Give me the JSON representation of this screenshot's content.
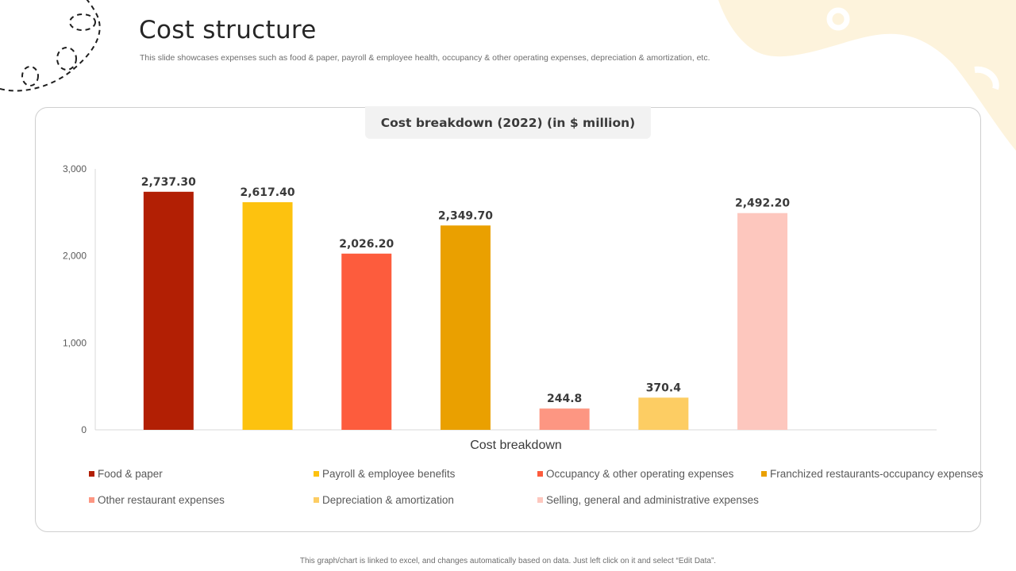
{
  "slide": {
    "title": "Cost structure",
    "subtitle": "This slide showcases expenses such as food & paper, payroll & employee health, occupancy & other operating expenses, depreciation & amortization, etc.",
    "footnote": "This graph/chart is linked to excel, and changes automatically based on data. Just left click on it and select “Edit Data”."
  },
  "colors": {
    "accent_cream": "#fdf3dc",
    "card_border": "#cfcfcf",
    "title_tab_bg": "#f2f2f2"
  },
  "chart_data": {
    "type": "bar",
    "title": "Cost breakdown (2022) (in $ million)",
    "xlabel": "Cost breakdown",
    "ylabel": "",
    "ylim": [
      0,
      3000
    ],
    "yticks": [
      {
        "value": 0,
        "label": "0"
      },
      {
        "value": 1000,
        "label": "1,000"
      },
      {
        "value": 2000,
        "label": "2,000"
      },
      {
        "value": 3000,
        "label": "3,000"
      }
    ],
    "grid": false,
    "legend_position": "bottom",
    "series": [
      {
        "name": "Food & paper",
        "value": 2737.3,
        "label": "2,737.30",
        "color": "#b21f04"
      },
      {
        "name": "Payroll & employee benefits",
        "value": 2617.4,
        "label": "2,617.40",
        "color": "#fdc20f"
      },
      {
        "name": "Occupancy & other operating expenses",
        "value": 2026.2,
        "label": "2,026.20",
        "color": "#fd5c3d"
      },
      {
        "name": "Franchized restaurants-occupancy expenses",
        "value": 2349.7,
        "label": "2,349.70",
        "color": "#eaa000"
      },
      {
        "name": "Other restaurant expenses",
        "value": 244.8,
        "label": "244.8",
        "color": "#fd9682"
      },
      {
        "name": "Depreciation & amortization",
        "value": 370.4,
        "label": "370.4",
        "color": "#fdcd63"
      },
      {
        "name": "Selling, general and administrative expenses",
        "value": 2492.2,
        "label": "2,492.20",
        "color": "#fdc7be"
      }
    ]
  }
}
